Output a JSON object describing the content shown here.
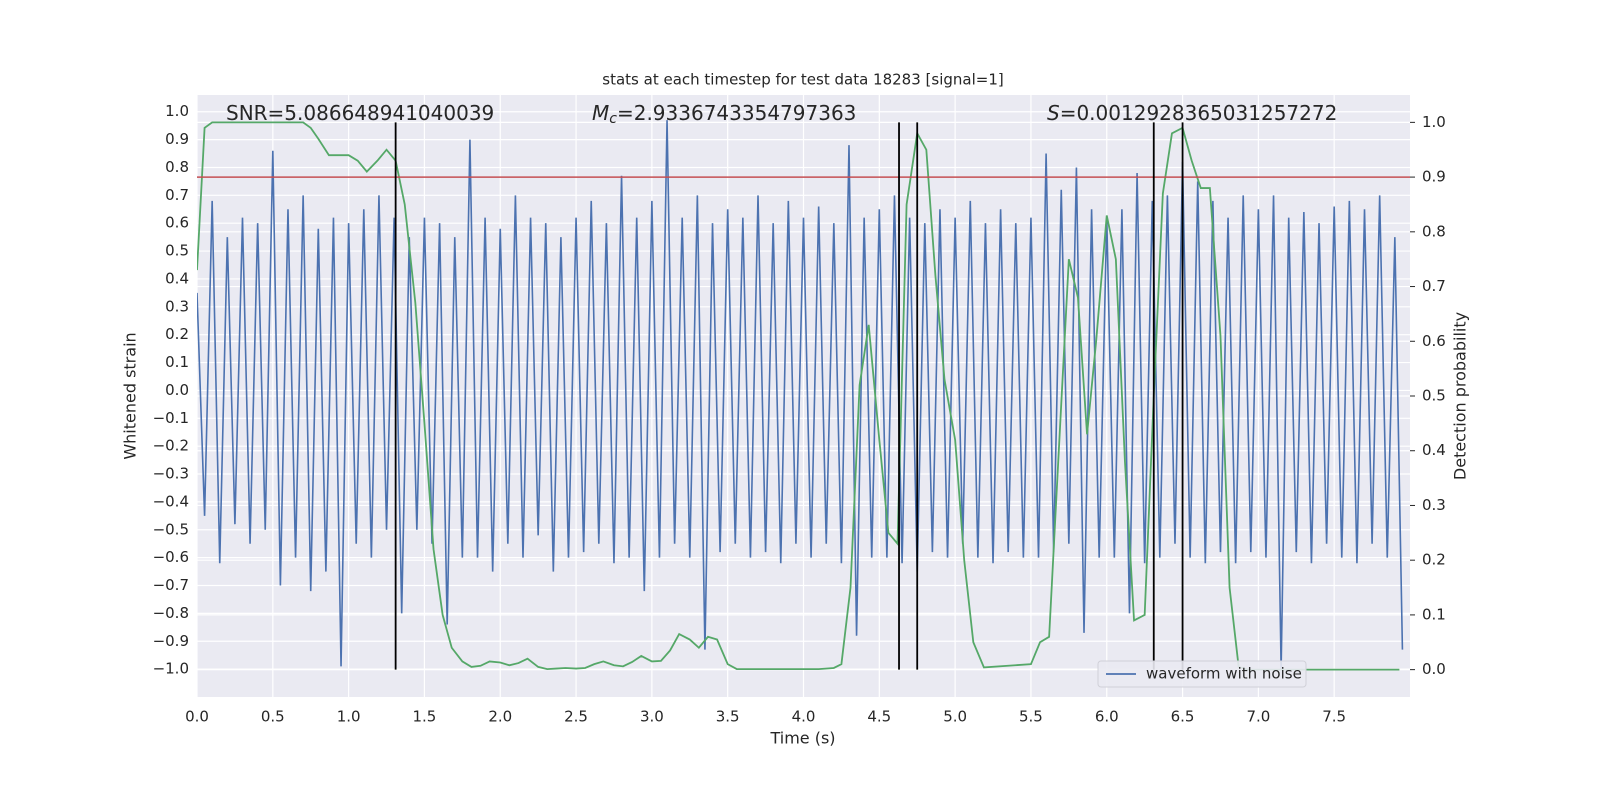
{
  "chart_data": {
    "type": "line",
    "title": "stats at each timestep for test data 18283 [signal=1]",
    "xlabel": "Time (s)",
    "ylabel": "Whitened strain",
    "y2label": "Detection probability",
    "xlim": [
      0,
      8.0
    ],
    "ylim": [
      -1.1,
      1.06
    ],
    "y2lim": [
      -0.05,
      1.05
    ],
    "xticks": [
      {
        "value": 0,
        "label": "0.0"
      },
      {
        "value": 0.5,
        "label": "0.5"
      },
      {
        "value": 1,
        "label": "1.0"
      },
      {
        "value": 1.5,
        "label": "1.5"
      },
      {
        "value": 2,
        "label": "2.0"
      },
      {
        "value": 2.5,
        "label": "2.5"
      },
      {
        "value": 3,
        "label": "3.0"
      },
      {
        "value": 3.5,
        "label": "3.5"
      },
      {
        "value": 4,
        "label": "4.0"
      },
      {
        "value": 4.5,
        "label": "4.5"
      },
      {
        "value": 5,
        "label": "5.0"
      },
      {
        "value": 5.5,
        "label": "5.5"
      },
      {
        "value": 6,
        "label": "6.0"
      },
      {
        "value": 6.5,
        "label": "6.5"
      },
      {
        "value": 7,
        "label": "7.0"
      },
      {
        "value": 7.5,
        "label": "7.5"
      }
    ],
    "yticks": [
      {
        "value": -1,
        "label": "−1.0"
      },
      {
        "value": -0.9,
        "label": "−0.9"
      },
      {
        "value": -0.8,
        "label": "−0.8"
      },
      {
        "value": -0.7,
        "label": "−0.7"
      },
      {
        "value": -0.6,
        "label": "−0.6"
      },
      {
        "value": -0.5,
        "label": "−0.5"
      },
      {
        "value": -0.4,
        "label": "−0.4"
      },
      {
        "value": -0.3,
        "label": "−0.3"
      },
      {
        "value": -0.2,
        "label": "−0.2"
      },
      {
        "value": -0.1,
        "label": "−0.1"
      },
      {
        "value": 0,
        "label": "0.0"
      },
      {
        "value": 0.1,
        "label": "0.1"
      },
      {
        "value": 0.2,
        "label": "0.2"
      },
      {
        "value": 0.3,
        "label": "0.3"
      },
      {
        "value": 0.4,
        "label": "0.4"
      },
      {
        "value": 0.5,
        "label": "0.5"
      },
      {
        "value": 0.6,
        "label": "0.6"
      },
      {
        "value": 0.7,
        "label": "0.7"
      },
      {
        "value": 0.8,
        "label": "0.8"
      },
      {
        "value": 0.9,
        "label": "0.9"
      },
      {
        "value": 1,
        "label": "1.0"
      }
    ],
    "y2ticks": [
      {
        "value": 0,
        "label": "0.0"
      },
      {
        "value": 0.1,
        "label": "0.1"
      },
      {
        "value": 0.2,
        "label": "0.2"
      },
      {
        "value": 0.3,
        "label": "0.3"
      },
      {
        "value": 0.4,
        "label": "0.4"
      },
      {
        "value": 0.5,
        "label": "0.5"
      },
      {
        "value": 0.6,
        "label": "0.6"
      },
      {
        "value": 0.7,
        "label": "0.7"
      },
      {
        "value": 0.8,
        "label": "0.8"
      },
      {
        "value": 0.9,
        "label": "0.9"
      },
      {
        "value": 1,
        "label": "1.0"
      }
    ],
    "grid": true,
    "legend": "lower right",
    "annotations": [
      {
        "text": "SNR=5.086648941040039"
      },
      {
        "symbol": "M",
        "subscript": "c",
        "text": "=2.9336743354797363"
      },
      {
        "symbol": "S",
        "text": "=0.0012928365031257272"
      }
    ],
    "threshold": {
      "value": 0.9,
      "axis": "y2",
      "color": "#c44e52"
    },
    "vlines": {
      "values": [
        1.31,
        4.63,
        4.75,
        6.31,
        6.5
      ],
      "color": "#000000"
    },
    "series": [
      {
        "name": "waveform with noise",
        "color": "#4c72b0",
        "x": [
          0,
          0.05,
          0.1,
          0.15,
          0.2,
          0.25,
          0.3,
          0.35,
          0.4,
          0.45,
          0.5,
          0.55,
          0.6,
          0.65,
          0.7,
          0.75,
          0.8,
          0.85,
          0.9,
          0.95,
          1,
          1.05,
          1.1,
          1.15,
          1.2,
          1.25,
          1.3,
          1.35,
          1.4,
          1.45,
          1.5,
          1.55,
          1.6,
          1.65,
          1.7,
          1.75,
          1.8,
          1.85,
          1.9,
          1.95,
          2,
          2.05,
          2.1,
          2.15,
          2.2,
          2.25,
          2.3,
          2.35,
          2.4,
          2.45,
          2.5,
          2.55,
          2.6,
          2.65,
          2.7,
          2.75,
          2.8,
          2.85,
          2.9,
          2.95,
          3,
          3.05,
          3.1,
          3.15,
          3.2,
          3.25,
          3.3,
          3.35,
          3.4,
          3.45,
          3.5,
          3.55,
          3.6,
          3.65,
          3.7,
          3.75,
          3.8,
          3.85,
          3.9,
          3.95,
          4,
          4.05,
          4.1,
          4.15,
          4.2,
          4.25,
          4.3,
          4.35,
          4.4,
          4.45,
          4.5,
          4.55,
          4.6,
          4.65,
          4.7,
          4.75,
          4.8,
          4.85,
          4.9,
          4.95,
          5,
          5.05,
          5.1,
          5.15,
          5.2,
          5.25,
          5.3,
          5.35,
          5.4,
          5.45,
          5.5,
          5.55,
          5.6,
          5.65,
          5.7,
          5.75,
          5.8,
          5.85,
          5.9,
          5.95,
          6,
          6.05,
          6.1,
          6.15,
          6.2,
          6.25,
          6.3,
          6.35,
          6.4,
          6.45,
          6.5,
          6.55,
          6.6,
          6.65,
          6.7,
          6.75,
          6.8,
          6.85,
          6.9,
          6.95,
          7,
          7.05,
          7.1,
          7.15,
          7.2,
          7.25,
          7.3,
          7.35,
          7.4,
          7.45,
          7.5,
          7.55,
          7.6,
          7.65,
          7.7,
          7.75,
          7.8,
          7.85,
          7.9,
          7.95
        ],
        "values": [
          0.35,
          -0.45,
          0.68,
          -0.62,
          0.55,
          -0.48,
          0.62,
          -0.55,
          0.6,
          -0.5,
          0.86,
          -0.7,
          0.65,
          -0.6,
          0.7,
          -0.72,
          0.58,
          -0.65,
          0.62,
          -0.99,
          0.6,
          -0.55,
          0.65,
          -0.6,
          0.7,
          -0.5,
          0.62,
          -0.8,
          0.55,
          -0.5,
          0.62,
          -0.55,
          0.6,
          -0.84,
          0.55,
          -0.6,
          0.9,
          -0.6,
          0.62,
          -0.65,
          0.58,
          -0.55,
          0.7,
          -0.6,
          0.62,
          -0.52,
          0.6,
          -0.65,
          0.55,
          -0.6,
          0.62,
          -0.58,
          0.68,
          -0.55,
          0.6,
          -0.62,
          0.77,
          -0.6,
          0.62,
          -0.72,
          0.68,
          -0.6,
          0.97,
          -0.55,
          0.62,
          -0.6,
          0.7,
          -0.93,
          0.6,
          -0.58,
          0.65,
          -0.55,
          0.62,
          -0.6,
          0.7,
          -0.58,
          0.6,
          -0.62,
          0.68,
          -0.55,
          0.62,
          -0.6,
          0.66,
          -0.55,
          0.6,
          -0.62,
          0.88,
          -0.88,
          0.62,
          -0.6,
          0.65,
          -0.6,
          0.7,
          -0.62,
          0.62,
          -0.65,
          0.6,
          -0.58,
          0.65,
          -0.6,
          0.62,
          -0.55,
          0.68,
          -0.6,
          0.6,
          -0.62,
          0.65,
          -0.58,
          0.6,
          -0.6,
          0.62,
          -0.6,
          0.85,
          -0.58,
          0.72,
          -0.55,
          0.8,
          -0.87,
          0.65,
          -0.6,
          0.62,
          -0.6,
          0.65,
          -0.8,
          0.78,
          -0.62,
          0.68,
          -0.6,
          0.7,
          -0.55,
          0.82,
          -0.6,
          0.75,
          -0.62,
          0.68,
          -0.58,
          0.62,
          -0.62,
          0.7,
          -0.58,
          0.65,
          -0.6,
          0.7,
          -1.0,
          0.62,
          -0.58,
          0.64,
          -0.62,
          0.6,
          -0.55,
          0.66,
          -0.6,
          0.68,
          -0.62,
          0.65,
          -0.55,
          0.7,
          -0.6,
          0.55,
          -0.93
        ]
      },
      {
        "color": "#55a868",
        "axis": "y2",
        "x": [
          0,
          0.05,
          0.1,
          0.2,
          0.3,
          0.4,
          0.5,
          0.6,
          0.7,
          0.75,
          0.8,
          0.87,
          0.93,
          1,
          1.06,
          1.12,
          1.19,
          1.25,
          1.31,
          1.37,
          1.44,
          1.5,
          1.56,
          1.62,
          1.68,
          1.75,
          1.81,
          1.87,
          1.93,
          2,
          2.06,
          2.12,
          2.18,
          2.25,
          2.31,
          2.37,
          2.43,
          2.5,
          2.56,
          2.62,
          2.68,
          2.75,
          2.81,
          2.87,
          2.93,
          3,
          3.06,
          3.12,
          3.18,
          3.25,
          3.31,
          3.37,
          3.43,
          3.5,
          3.56,
          3.8,
          4.1,
          4.2,
          4.25,
          4.31,
          4.37,
          4.43,
          4.5,
          4.56,
          4.62,
          4.68,
          4.75,
          4.81,
          4.87,
          4.93,
          5,
          5.06,
          5.12,
          5.19,
          5.5,
          5.56,
          5.62,
          5.68,
          5.75,
          5.81,
          5.87,
          5.93,
          6,
          6.06,
          6.12,
          6.18,
          6.25,
          6.31,
          6.37,
          6.43,
          6.5,
          6.56,
          6.62,
          6.68,
          6.75,
          6.81,
          6.87,
          6.93,
          7.5,
          7.93
        ],
        "values": [
          0.73,
          0.99,
          1.0,
          1.0,
          1.0,
          1.0,
          1.0,
          1.0,
          1.0,
          0.99,
          0.97,
          0.94,
          0.94,
          0.94,
          0.93,
          0.91,
          0.93,
          0.95,
          0.93,
          0.85,
          0.67,
          0.45,
          0.22,
          0.1,
          0.04,
          0.015,
          0.005,
          0.007,
          0.015,
          0.013,
          0.008,
          0.012,
          0.02,
          0.005,
          0.001,
          0.002,
          0.003,
          0.002,
          0.003,
          0.01,
          0.015,
          0.008,
          0.006,
          0.014,
          0.025,
          0.015,
          0.016,
          0.035,
          0.065,
          0.055,
          0.04,
          0.06,
          0.055,
          0.01,
          0.001,
          0.001,
          0.001,
          0.003,
          0.01,
          0.15,
          0.52,
          0.63,
          0.42,
          0.25,
          0.23,
          0.85,
          0.98,
          0.95,
          0.72,
          0.53,
          0.42,
          0.2,
          0.05,
          0.004,
          0.01,
          0.05,
          0.06,
          0.38,
          0.75,
          0.68,
          0.43,
          0.6,
          0.83,
          0.75,
          0.38,
          0.09,
          0.1,
          0.5,
          0.87,
          0.98,
          0.99,
          0.93,
          0.88,
          0.88,
          0.61,
          0.15,
          0.005,
          0.0,
          0.0,
          0.0
        ]
      }
    ]
  }
}
